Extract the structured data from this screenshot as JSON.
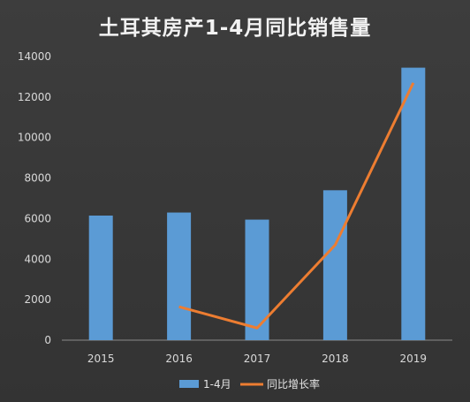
{
  "chart_data": {
    "type": "bar",
    "title": "土耳其房产1-4月同比销售量",
    "categories": [
      "2015",
      "2016",
      "2017",
      "2018",
      "2019"
    ],
    "ylim": [
      0,
      14000
    ],
    "yticks": [
      0,
      2000,
      4000,
      6000,
      8000,
      10000,
      12000,
      14000
    ],
    "grid": false,
    "legend_position": "bottom",
    "series": [
      {
        "name": "1-4月",
        "type": "bar",
        "color": "#5b9bd5",
        "values": [
          6150,
          6300,
          5950,
          7400,
          13450
        ]
      },
      {
        "name": "同比增长率",
        "type": "line",
        "color": "#ed7d31",
        "values": [
          null,
          1650,
          600,
          4700,
          12700
        ]
      }
    ]
  }
}
